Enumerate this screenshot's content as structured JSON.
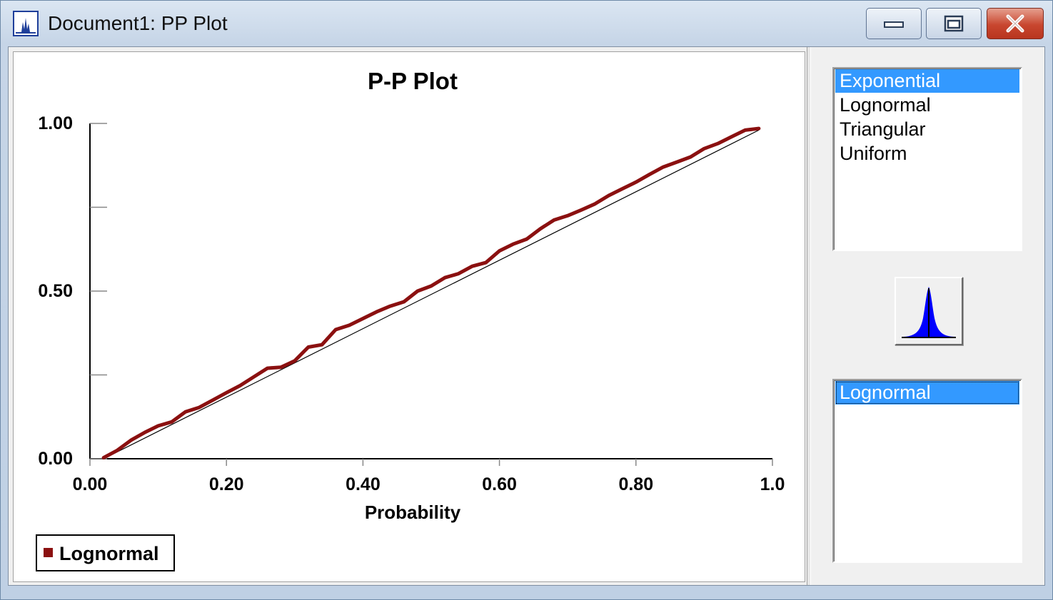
{
  "window": {
    "title": "Document1: PP Plot",
    "icons": {
      "app": "distribution-plot-icon",
      "minimize": "minimize-icon",
      "maximize": "maximize-icon",
      "close": "close-icon"
    }
  },
  "colors": {
    "accent": "#3399ff",
    "series": "#8b1010",
    "reference_line": "#000000",
    "button_shape": "#0000ff"
  },
  "chart_data": {
    "type": "line",
    "title": "P-P Plot",
    "xlabel": "Probability",
    "ylabel": "",
    "xlim": [
      0,
      1.0
    ],
    "ylim": [
      0,
      1.0
    ],
    "x_ticks": [
      0,
      0.2,
      0.4,
      0.6,
      0.8,
      1.0
    ],
    "x_tick_labels": [
      "0.00",
      "0.20",
      "0.40",
      "0.60",
      "0.80",
      "1.0"
    ],
    "y_ticks": [
      0,
      0.25,
      0.5,
      0.75,
      1.0
    ],
    "y_tick_labels": [
      "0.00",
      "",
      "0.50",
      "",
      "1.00"
    ],
    "grid": false,
    "legend": "bottom-left",
    "reference_line": {
      "x": [
        0.02,
        0.98
      ],
      "y": [
        0.0,
        0.98
      ]
    },
    "series": [
      {
        "name": "Lognormal",
        "x": [
          0.02,
          0.04,
          0.06,
          0.08,
          0.1,
          0.12,
          0.14,
          0.16,
          0.18,
          0.2,
          0.22,
          0.24,
          0.26,
          0.28,
          0.3,
          0.32,
          0.34,
          0.36,
          0.38,
          0.4,
          0.42,
          0.44,
          0.46,
          0.48,
          0.5,
          0.52,
          0.54,
          0.56,
          0.58,
          0.6,
          0.62,
          0.64,
          0.66,
          0.68,
          0.7,
          0.72,
          0.74,
          0.76,
          0.78,
          0.8,
          0.82,
          0.84,
          0.86,
          0.88,
          0.9,
          0.92,
          0.94,
          0.96,
          0.98
        ],
        "y": [
          0.003,
          0.025,
          0.055,
          0.078,
          0.098,
          0.11,
          0.14,
          0.153,
          0.175,
          0.197,
          0.218,
          0.244,
          0.27,
          0.273,
          0.292,
          0.333,
          0.34,
          0.385,
          0.398,
          0.418,
          0.438,
          0.455,
          0.468,
          0.5,
          0.515,
          0.54,
          0.552,
          0.574,
          0.585,
          0.62,
          0.64,
          0.655,
          0.686,
          0.712,
          0.725,
          0.742,
          0.76,
          0.785,
          0.805,
          0.825,
          0.848,
          0.87,
          0.885,
          0.9,
          0.925,
          0.94,
          0.96,
          0.98,
          0.985
        ]
      }
    ]
  },
  "side_panel": {
    "distributions": [
      {
        "label": "Exponential",
        "selected": true
      },
      {
        "label": "Lognormal",
        "selected": false
      },
      {
        "label": "Triangular",
        "selected": false
      },
      {
        "label": "Uniform",
        "selected": false
      }
    ],
    "fit_button_icon": "bell-curve-icon",
    "selected_list": [
      {
        "label": "Lognormal",
        "selected": true
      }
    ]
  }
}
